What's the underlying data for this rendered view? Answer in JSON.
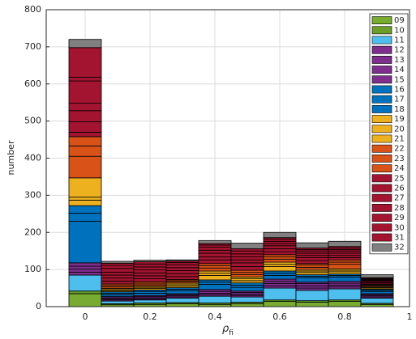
{
  "chart_data": {
    "type": "histogram",
    "stacked": true,
    "xlabel": {
      "text": "ρ",
      "subscript": "fi"
    },
    "ylabel": "number",
    "bins": [
      -0.05,
      0.05,
      0.15,
      0.25,
      0.35,
      0.45,
      0.55,
      0.65,
      0.75,
      0.85,
      0.95
    ],
    "xlim": [
      -0.12,
      1.0
    ],
    "xticks": [
      0,
      0.2,
      0.4,
      0.6,
      0.8,
      1
    ],
    "ylim": [
      0,
      800
    ],
    "yticks": [
      0,
      100,
      200,
      300,
      400,
      500,
      600,
      700,
      800
    ],
    "grid": true,
    "legend": "upper right",
    "series": [
      {
        "name": "09",
        "color": "#77ac30",
        "values": [
          35,
          5,
          6,
          8,
          6,
          8,
          14,
          12,
          14,
          6
        ]
      },
      {
        "name": "10",
        "color": "#6a9e28",
        "values": [
          7,
          3,
          4,
          3,
          4,
          4,
          4,
          4,
          4,
          3
        ]
      },
      {
        "name": "11",
        "color": "#4dbeee",
        "values": [
          43,
          7,
          8,
          12,
          18,
          14,
          32,
          28,
          30,
          14
        ]
      },
      {
        "name": "12",
        "color": "#7e2f8e",
        "values": [
          8,
          3,
          3,
          3,
          4,
          4,
          6,
          6,
          5,
          3
        ]
      },
      {
        "name": "13",
        "color": "#7e2f8e",
        "values": [
          8,
          3,
          3,
          3,
          4,
          4,
          6,
          6,
          5,
          3
        ]
      },
      {
        "name": "14",
        "color": "#7e2f8e",
        "values": [
          8,
          3,
          3,
          3,
          5,
          4,
          6,
          6,
          5,
          3
        ]
      },
      {
        "name": "15",
        "color": "#7e2f8e",
        "values": [
          9,
          3,
          3,
          3,
          5,
          4,
          6,
          4,
          5,
          3
        ]
      },
      {
        "name": "16",
        "color": "#0072bd",
        "values": [
          112,
          5,
          6,
          8,
          14,
          10,
          10,
          12,
          12,
          6
        ]
      },
      {
        "name": "17",
        "color": "#0072bd",
        "values": [
          22,
          4,
          5,
          4,
          6,
          6,
          6,
          4,
          4,
          3
        ]
      },
      {
        "name": "18",
        "color": "#0072bd",
        "values": [
          20,
          4,
          4,
          4,
          6,
          6,
          6,
          4,
          4,
          3
        ]
      },
      {
        "name": "19",
        "color": "#edb120",
        "values": [
          15,
          3,
          4,
          4,
          12,
          6,
          12,
          6,
          6,
          3
        ]
      },
      {
        "name": "20",
        "color": "#edb120",
        "values": [
          8,
          3,
          3,
          4,
          6,
          5,
          6,
          4,
          4,
          2
        ]
      },
      {
        "name": "21",
        "color": "#edb120",
        "values": [
          52,
          3,
          3,
          4,
          6,
          5,
          6,
          4,
          4,
          2
        ]
      },
      {
        "name": "22",
        "color": "#d95319",
        "values": [
          58,
          4,
          4,
          4,
          8,
          6,
          8,
          6,
          12,
          3
        ]
      },
      {
        "name": "23",
        "color": "#d95319",
        "values": [
          28,
          4,
          4,
          3,
          6,
          6,
          6,
          6,
          6,
          2
        ]
      },
      {
        "name": "24",
        "color": "#d95319",
        "values": [
          25,
          4,
          4,
          3,
          6,
          6,
          6,
          4,
          6,
          2
        ]
      },
      {
        "name": "25",
        "color": "#a2142f",
        "values": [
          12,
          8,
          8,
          8,
          10,
          10,
          8,
          8,
          6,
          3
        ]
      },
      {
        "name": "26",
        "color": "#a2142f",
        "values": [
          28,
          8,
          8,
          8,
          8,
          10,
          8,
          8,
          6,
          3
        ]
      },
      {
        "name": "27",
        "color": "#a2142f",
        "values": [
          30,
          8,
          8,
          8,
          10,
          8,
          8,
          6,
          6,
          3
        ]
      },
      {
        "name": "28",
        "color": "#a2142f",
        "values": [
          20,
          8,
          8,
          8,
          8,
          8,
          6,
          6,
          6,
          2
        ]
      },
      {
        "name": "29",
        "color": "#a2142f",
        "values": [
          60,
          10,
          8,
          8,
          8,
          8,
          6,
          6,
          4,
          2
        ]
      },
      {
        "name": "30",
        "color": "#a2142f",
        "values": [
          10,
          8,
          8,
          6,
          6,
          8,
          6,
          4,
          4,
          2
        ]
      },
      {
        "name": "31",
        "color": "#a2142f",
        "values": [
          80,
          6,
          6,
          4,
          4,
          6,
          4,
          4,
          4,
          2
        ]
      },
      {
        "name": "32",
        "color": "#808080",
        "values": [
          22,
          5,
          4,
          3,
          8,
          15,
          14,
          14,
          14,
          8
        ]
      }
    ]
  }
}
